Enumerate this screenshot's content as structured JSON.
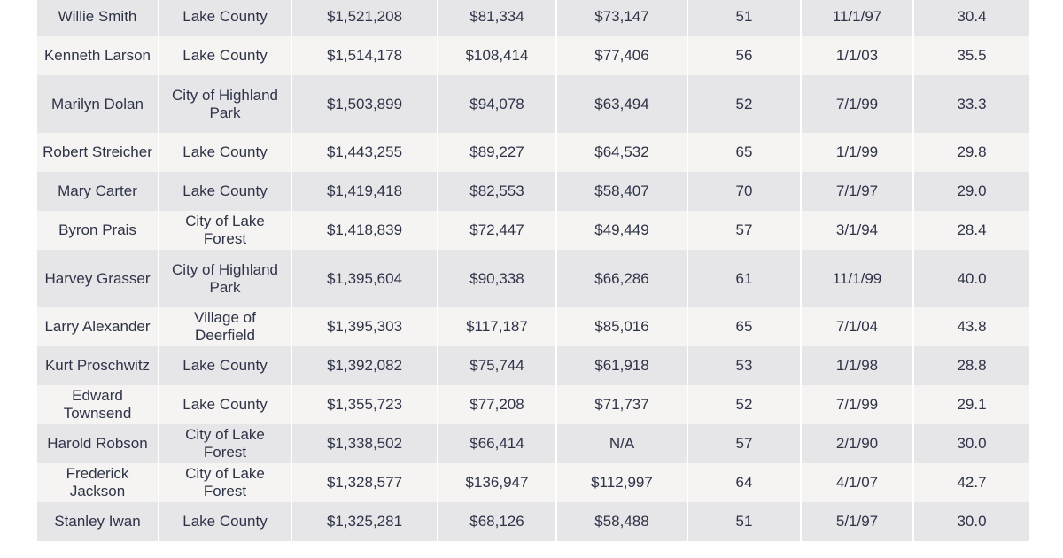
{
  "table": {
    "rows": [
      {
        "name": "Willie Smith",
        "employer": "Lake County",
        "pension": "$1,521,208",
        "salary": "$81,334",
        "benefit": "$73,147",
        "age": "51",
        "date": "11/1/97",
        "years": "30.4"
      },
      {
        "name": "Kenneth Larson",
        "employer": "Lake County",
        "pension": "$1,514,178",
        "salary": "$108,414",
        "benefit": "$77,406",
        "age": "56",
        "date": "1/1/03",
        "years": "35.5"
      },
      {
        "name": "Marilyn Dolan",
        "employer": "City of Highland Park",
        "pension": "$1,503,899",
        "salary": "$94,078",
        "benefit": "$63,494",
        "age": "52",
        "date": "7/1/99",
        "years": "33.3"
      },
      {
        "name": "Robert Streicher",
        "employer": "Lake County",
        "pension": "$1,443,255",
        "salary": "$89,227",
        "benefit": "$64,532",
        "age": "65",
        "date": "1/1/99",
        "years": "29.8"
      },
      {
        "name": "Mary Carter",
        "employer": "Lake County",
        "pension": "$1,419,418",
        "salary": "$82,553",
        "benefit": "$58,407",
        "age": "70",
        "date": "7/1/97",
        "years": "29.0"
      },
      {
        "name": "Byron Prais",
        "employer": "City of Lake Forest",
        "pension": "$1,418,839",
        "salary": "$72,447",
        "benefit": "$49,449",
        "age": "57",
        "date": "3/1/94",
        "years": "28.4"
      },
      {
        "name": "Harvey Grasser",
        "employer": "City of Highland Park",
        "pension": "$1,395,604",
        "salary": "$90,338",
        "benefit": "$66,286",
        "age": "61",
        "date": "11/1/99",
        "years": "40.0"
      },
      {
        "name": "Larry Alexander",
        "employer": "Village of Deerfield",
        "pension": "$1,395,303",
        "salary": "$117,187",
        "benefit": "$85,016",
        "age": "65",
        "date": "7/1/04",
        "years": "43.8"
      },
      {
        "name": "Kurt Proschwitz",
        "employer": "Lake County",
        "pension": "$1,392,082",
        "salary": "$75,744",
        "benefit": "$61,918",
        "age": "53",
        "date": "1/1/98",
        "years": "28.8"
      },
      {
        "name": "Edward Townsend",
        "employer": "Lake County",
        "pension": "$1,355,723",
        "salary": "$77,208",
        "benefit": "$71,737",
        "age": "52",
        "date": "7/1/99",
        "years": "29.1"
      },
      {
        "name": "Harold Robson",
        "employer": "City of Lake Forest",
        "pension": "$1,338,502",
        "salary": "$66,414",
        "benefit": "N/A",
        "age": "57",
        "date": "2/1/90",
        "years": "30.0"
      },
      {
        "name": "Frederick Jackson",
        "employer": "City of Lake Forest",
        "pension": "$1,328,577",
        "salary": "$136,947",
        "benefit": "$112,997",
        "age": "64",
        "date": "4/1/07",
        "years": "42.7"
      },
      {
        "name": "Stanley Iwan",
        "employer": "Lake County",
        "pension": "$1,325,281",
        "salary": "$68,126",
        "benefit": "$58,488",
        "age": "51",
        "date": "5/1/97",
        "years": "30.0"
      }
    ]
  }
}
